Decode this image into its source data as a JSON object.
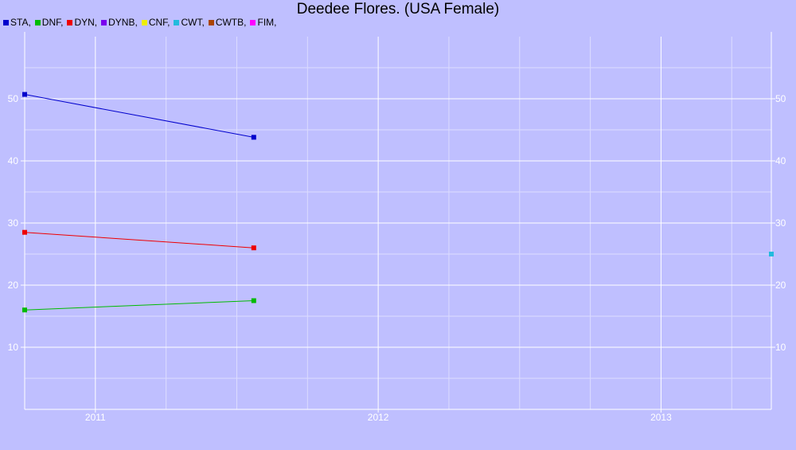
{
  "chart_data": {
    "type": "line",
    "title": "Deedee Flores. (USA Female)",
    "xlabel": "",
    "ylabel": "",
    "x_ticks": [
      "2011",
      "2012",
      "2013"
    ],
    "y_ticks": [
      10,
      20,
      30,
      40,
      50
    ],
    "xlim": [
      2010.75,
      2013.39
    ],
    "ylim": [
      0,
      60
    ],
    "grid": true,
    "legend_position": "top-left",
    "series": [
      {
        "name": "STA",
        "color": "#0000cc",
        "points": [
          {
            "x": 2010.75,
            "y": 50.7
          },
          {
            "x": 2011.56,
            "y": 43.8
          }
        ]
      },
      {
        "name": "DNF",
        "color": "#00bb00",
        "points": [
          {
            "x": 2010.75,
            "y": 16.0
          },
          {
            "x": 2011.56,
            "y": 17.5
          }
        ]
      },
      {
        "name": "DYN",
        "color": "#ee0000",
        "points": [
          {
            "x": 2010.75,
            "y": 28.5
          },
          {
            "x": 2011.56,
            "y": 26.0
          }
        ]
      },
      {
        "name": "DYNB",
        "color": "#7a00ee",
        "points": []
      },
      {
        "name": "CNF",
        "color": "#eeee00",
        "points": []
      },
      {
        "name": "CWT",
        "color": "#22bbdd",
        "points": [
          {
            "x": 2013.39,
            "y": 25.0
          }
        ]
      },
      {
        "name": "CWTB",
        "color": "#aa4400",
        "points": []
      },
      {
        "name": "FIM",
        "color": "#ff00ff",
        "points": []
      }
    ]
  }
}
